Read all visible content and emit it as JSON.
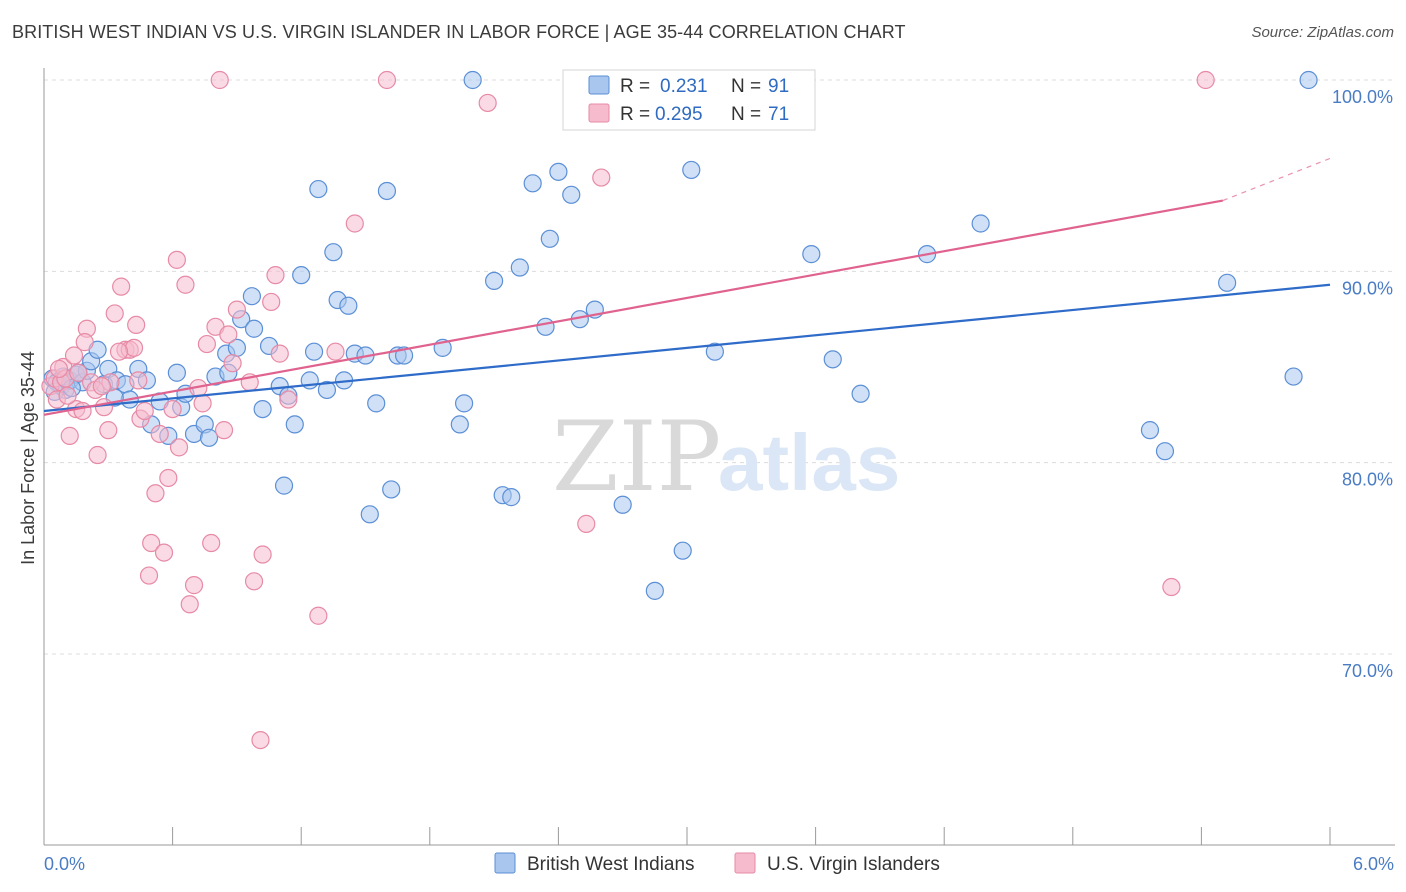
{
  "title": "BRITISH WEST INDIAN VS U.S. VIRGIN ISLANDER IN LABOR FORCE | AGE 35-44 CORRELATION CHART",
  "source": "Source: ZipAtlas.com",
  "watermark": {
    "zip": "ZIP",
    "atlas": "atlas"
  },
  "chart_data": {
    "type": "scatter",
    "xlabel": "",
    "ylabel": "In Labor Force | Age 35-44",
    "xlim": [
      0.0,
      6.0
    ],
    "ylim": [
      60.0,
      101.0
    ],
    "x_tick_labels": [
      "0.0%",
      "6.0%"
    ],
    "y_ticks": [
      70,
      80,
      90,
      100
    ],
    "y_tick_labels": [
      "70.0%",
      "80.0%",
      "90.0%",
      "100.0%"
    ],
    "legend_position": "top-center",
    "colors": {
      "blue_fill": "#a9c6ef",
      "blue_stroke": "#5b8fd6",
      "blue_line": "#2f6bc9",
      "pink_fill": "#f6bccd",
      "pink_stroke": "#e78aa6",
      "pink_line": "#e0628e",
      "grid": "#dcdcdc",
      "axis": "#9a9a9a",
      "tick_text": "#4a7cc4"
    },
    "stats": [
      {
        "r_label": "R =",
        "r_value": "0.231",
        "n_label": "N =",
        "n_value": "91"
      },
      {
        "r_label": "R =",
        "r_value": "0.295",
        "n_label": "N =",
        "n_value": "71"
      }
    ],
    "series": [
      {
        "name": "British West Indians",
        "trend": {
          "x0": 0.0,
          "y0": 82.7,
          "x1": 6.0,
          "y1": 89.3
        },
        "points": [
          [
            0.04,
            84.4
          ],
          [
            0.06,
            84.2
          ],
          [
            0.08,
            84.0
          ],
          [
            0.1,
            83.8
          ],
          [
            0.12,
            84.3
          ],
          [
            0.15,
            84.6
          ],
          [
            0.18,
            84.2
          ],
          [
            0.2,
            84.8
          ],
          [
            0.22,
            85.3
          ],
          [
            0.25,
            85.9
          ],
          [
            0.28,
            84.1
          ],
          [
            0.3,
            84.9
          ],
          [
            0.34,
            84.3
          ],
          [
            0.38,
            84.1
          ],
          [
            0.4,
            83.3
          ],
          [
            0.44,
            84.9
          ],
          [
            0.48,
            84.3
          ],
          [
            0.5,
            82.0
          ],
          [
            0.54,
            83.2
          ],
          [
            0.58,
            81.4
          ],
          [
            0.62,
            84.7
          ],
          [
            0.64,
            82.9
          ],
          [
            0.66,
            83.6
          ],
          [
            0.7,
            81.5
          ],
          [
            0.75,
            82.0
          ],
          [
            0.77,
            81.3
          ],
          [
            0.8,
            84.5
          ],
          [
            0.85,
            85.7
          ],
          [
            0.86,
            84.7
          ],
          [
            0.9,
            86.0
          ],
          [
            0.92,
            87.5
          ],
          [
            0.97,
            88.7
          ],
          [
            0.98,
            87.0
          ],
          [
            1.02,
            82.8
          ],
          [
            1.05,
            86.1
          ],
          [
            1.1,
            84.0
          ],
          [
            1.12,
            78.8
          ],
          [
            1.14,
            83.5
          ],
          [
            1.17,
            82.0
          ],
          [
            1.2,
            89.8
          ],
          [
            1.24,
            84.3
          ],
          [
            1.26,
            85.8
          ],
          [
            1.28,
            94.3
          ],
          [
            1.32,
            83.8
          ],
          [
            1.35,
            91.0
          ],
          [
            1.37,
            88.5
          ],
          [
            1.4,
            84.3
          ],
          [
            1.42,
            88.2
          ],
          [
            1.45,
            85.7
          ],
          [
            1.5,
            85.6
          ],
          [
            1.52,
            77.3
          ],
          [
            1.55,
            83.1
          ],
          [
            1.6,
            94.2
          ],
          [
            1.62,
            78.6
          ],
          [
            1.65,
            85.6
          ],
          [
            1.68,
            85.6
          ],
          [
            1.86,
            86.0
          ],
          [
            1.94,
            82.0
          ],
          [
            1.96,
            83.1
          ],
          [
            2.0,
            100.0
          ],
          [
            2.1,
            89.5
          ],
          [
            2.14,
            78.3
          ],
          [
            2.18,
            78.2
          ],
          [
            2.22,
            90.2
          ],
          [
            2.28,
            94.6
          ],
          [
            2.34,
            87.1
          ],
          [
            2.36,
            91.7
          ],
          [
            2.4,
            95.2
          ],
          [
            2.46,
            94.0
          ],
          [
            2.5,
            87.5
          ],
          [
            2.57,
            88.0
          ],
          [
            2.7,
            77.8
          ],
          [
            2.85,
            73.3
          ],
          [
            2.98,
            75.4
          ],
          [
            3.02,
            95.3
          ],
          [
            3.13,
            85.8
          ],
          [
            3.58,
            90.9
          ],
          [
            3.68,
            85.4
          ],
          [
            3.81,
            83.6
          ],
          [
            4.12,
            90.9
          ],
          [
            4.37,
            92.5
          ],
          [
            5.16,
            81.7
          ],
          [
            5.23,
            80.6
          ],
          [
            5.52,
            89.4
          ],
          [
            5.83,
            84.5
          ],
          [
            5.9,
            100.0
          ],
          [
            0.05,
            83.7
          ],
          [
            0.09,
            84.5
          ],
          [
            0.13,
            83.9
          ],
          [
            0.16,
            84.7
          ],
          [
            0.33,
            83.4
          ]
        ]
      },
      {
        "name": "U.S. Virgin Islanders",
        "trend": {
          "x0": 0.0,
          "y0": 82.5,
          "x1": 5.5,
          "y1": 93.7,
          "dash_x1": 6.0,
          "dash_y1": 95.9
        },
        "points": [
          [
            0.03,
            84.0
          ],
          [
            0.05,
            84.4
          ],
          [
            0.06,
            83.3
          ],
          [
            0.08,
            84.2
          ],
          [
            0.09,
            85.0
          ],
          [
            0.1,
            84.4
          ],
          [
            0.12,
            81.4
          ],
          [
            0.14,
            85.6
          ],
          [
            0.15,
            82.8
          ],
          [
            0.16,
            84.7
          ],
          [
            0.18,
            82.7
          ],
          [
            0.2,
            87.0
          ],
          [
            0.22,
            84.2
          ],
          [
            0.24,
            83.8
          ],
          [
            0.25,
            80.4
          ],
          [
            0.28,
            82.9
          ],
          [
            0.3,
            81.7
          ],
          [
            0.31,
            84.2
          ],
          [
            0.33,
            87.8
          ],
          [
            0.36,
            89.2
          ],
          [
            0.38,
            85.9
          ],
          [
            0.4,
            85.9
          ],
          [
            0.42,
            86.0
          ],
          [
            0.43,
            87.2
          ],
          [
            0.45,
            82.3
          ],
          [
            0.47,
            82.7
          ],
          [
            0.49,
            74.1
          ],
          [
            0.5,
            75.8
          ],
          [
            0.52,
            78.4
          ],
          [
            0.54,
            81.5
          ],
          [
            0.56,
            75.3
          ],
          [
            0.58,
            79.2
          ],
          [
            0.6,
            82.8
          ],
          [
            0.62,
            90.6
          ],
          [
            0.63,
            80.8
          ],
          [
            0.66,
            89.3
          ],
          [
            0.68,
            72.6
          ],
          [
            0.7,
            73.6
          ],
          [
            0.72,
            83.9
          ],
          [
            0.74,
            83.1
          ],
          [
            0.76,
            86.2
          ],
          [
            0.78,
            75.8
          ],
          [
            0.8,
            87.1
          ],
          [
            0.82,
            100.0
          ],
          [
            0.84,
            81.7
          ],
          [
            0.86,
            86.7
          ],
          [
            0.88,
            85.2
          ],
          [
            0.9,
            88.0
          ],
          [
            0.96,
            84.2
          ],
          [
            0.98,
            73.8
          ],
          [
            1.02,
            75.2
          ],
          [
            1.06,
            88.4
          ],
          [
            1.08,
            89.8
          ],
          [
            1.1,
            85.7
          ],
          [
            1.14,
            83.3
          ],
          [
            1.28,
            72.0
          ],
          [
            1.36,
            85.8
          ],
          [
            1.45,
            92.5
          ],
          [
            1.6,
            100.0
          ],
          [
            2.07,
            98.8
          ],
          [
            2.53,
            76.8
          ],
          [
            2.6,
            94.9
          ],
          [
            5.26,
            73.5
          ],
          [
            5.42,
            100.0
          ],
          [
            1.01,
            65.5
          ],
          [
            0.07,
            84.9
          ],
          [
            0.11,
            83.5
          ],
          [
            0.19,
            86.3
          ],
          [
            0.27,
            84.0
          ],
          [
            0.35,
            85.8
          ],
          [
            0.44,
            84.3
          ]
        ]
      }
    ]
  }
}
